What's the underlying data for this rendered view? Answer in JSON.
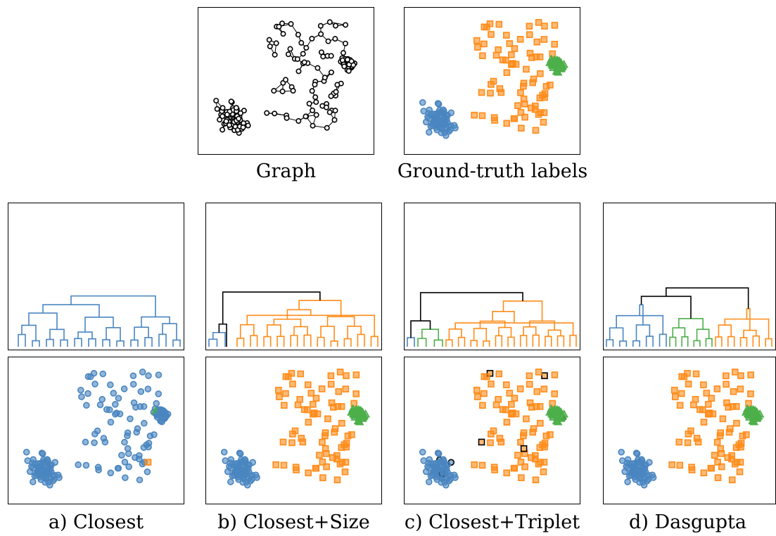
{
  "top": {
    "graph_caption": "Graph",
    "truth_caption": "Ground-truth labels"
  },
  "methods": [
    {
      "caption": "a) Closest"
    },
    {
      "caption": "b) Closest+Size"
    },
    {
      "caption": "c) Closest+Triplet"
    },
    {
      "caption": "d) Dasgupta"
    }
  ],
  "colors": {
    "cluster_blue": "#4a86c0",
    "cluster_orange": "#ff8c1a",
    "cluster_green": "#4daf4a",
    "edge_black": "#000000"
  },
  "legend_shapes": {
    "blue": "circle",
    "orange": "square",
    "green": "triangle"
  }
}
